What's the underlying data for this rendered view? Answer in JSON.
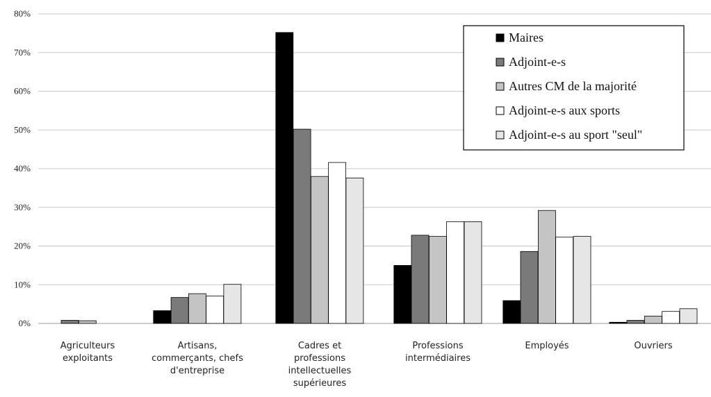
{
  "chart_data": {
    "type": "bar",
    "categories": [
      [
        "Agriculteurs",
        "exploitants"
      ],
      [
        "Artisans,",
        "commerçants, chefs",
        "d'entreprise"
      ],
      [
        "Cadres et",
        "professions",
        "intellectuelles",
        "supérieures"
      ],
      [
        "Professions",
        "intermédiaires"
      ],
      [
        "Employés"
      ],
      [
        "Ouvriers"
      ]
    ],
    "series": [
      {
        "name": "Maires",
        "color": "#000000",
        "values": [
          0.0,
          3.3,
          75.2,
          15.0,
          5.9,
          0.3
        ]
      },
      {
        "name": "Adjoint-e-s",
        "color": "#7a7a7a",
        "values": [
          0.8,
          6.7,
          50.2,
          22.8,
          18.6,
          0.8
        ]
      },
      {
        "name": "Autres CM de la majorité",
        "color": "#c4c4c4",
        "values": [
          0.7,
          7.7,
          38.0,
          22.5,
          29.2,
          1.9
        ]
      },
      {
        "name": "Adjoint-e-s aux sports",
        "color": "#ffffff",
        "values": [
          0.0,
          7.1,
          41.6,
          26.3,
          22.3,
          3.1
        ]
      },
      {
        "name": "Adjoint-e-s au sport \"seul\"",
        "color": "#e6e6e6",
        "values": [
          0.0,
          10.1,
          37.6,
          26.3,
          22.5,
          3.8
        ]
      }
    ],
    "yticks": [
      "0%",
      "10%",
      "20%",
      "30%",
      "40%",
      "50%",
      "60%",
      "70%",
      "80%"
    ],
    "ylim": [
      0,
      80
    ],
    "grid": true,
    "legend": "top-right"
  }
}
